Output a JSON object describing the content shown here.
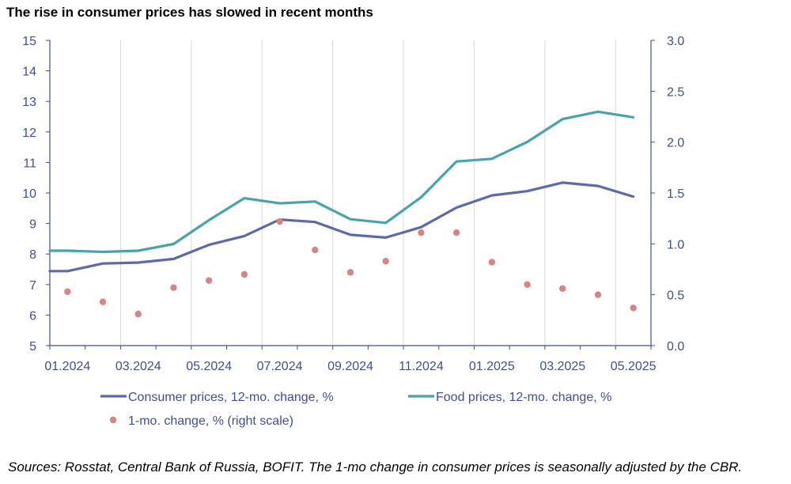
{
  "chart_data": {
    "type": "line",
    "title": "The rise in consumer prices has slowed in recent months",
    "x": [
      "01.2024",
      "02.2024",
      "03.2024",
      "04.2024",
      "05.2024",
      "06.2024",
      "07.2024",
      "08.2024",
      "09.2024",
      "10.2024",
      "11.2024",
      "12.2024",
      "01.2025",
      "02.2025",
      "03.2025",
      "04.2025",
      "05.2025"
    ],
    "x_tick_labels": [
      "01.2024",
      "03.2024",
      "05.2024",
      "07.2024",
      "09.2024",
      "11.2024",
      "01.2025",
      "03.2025",
      "05.2025"
    ],
    "y_left": {
      "min": 5,
      "max": 15,
      "step": 1,
      "tick_labels": [
        "5",
        "6",
        "7",
        "8",
        "9",
        "10",
        "11",
        "12",
        "13",
        "14",
        "15"
      ]
    },
    "y_right": {
      "min": 0.0,
      "max": 3.0,
      "step": 0.5,
      "tick_labels": [
        "0.0",
        "0.5",
        "1.0",
        "1.5",
        "2.0",
        "2.5",
        "3.0"
      ]
    },
    "grid": "vertical",
    "legend_position": "bottom",
    "series": [
      {
        "name": "Consumer prices, 12-mo. change, %",
        "axis": "left",
        "style": "line",
        "color": "#5b6aa8",
        "values": [
          7.44,
          7.69,
          7.72,
          7.84,
          8.3,
          8.59,
          9.13,
          9.05,
          8.63,
          8.54,
          8.88,
          9.52,
          9.92,
          10.06,
          10.34,
          10.23,
          9.88
        ]
      },
      {
        "name": "Food prices, 12-mo. change, %",
        "axis": "left",
        "style": "line",
        "color": "#4aa2ac",
        "values": [
          8.11,
          8.07,
          8.11,
          8.33,
          9.11,
          9.83,
          9.66,
          9.72,
          9.14,
          9.02,
          9.86,
          11.03,
          11.12,
          11.67,
          12.42,
          12.66,
          12.48
        ]
      },
      {
        "name": "1-mo. change, % (right scale)",
        "axis": "right",
        "style": "scatter",
        "color": "#d68585",
        "values": [
          0.53,
          0.43,
          0.31,
          0.57,
          0.64,
          0.7,
          1.22,
          0.94,
          0.72,
          0.83,
          1.11,
          1.11,
          0.82,
          0.6,
          0.56,
          0.5,
          0.37
        ]
      }
    ]
  },
  "source_note": "Sources: Rosstat, Central Bank of Russia, BOFIT. The 1-mo change in consumer prices is seasonally adjusted by the CBR."
}
